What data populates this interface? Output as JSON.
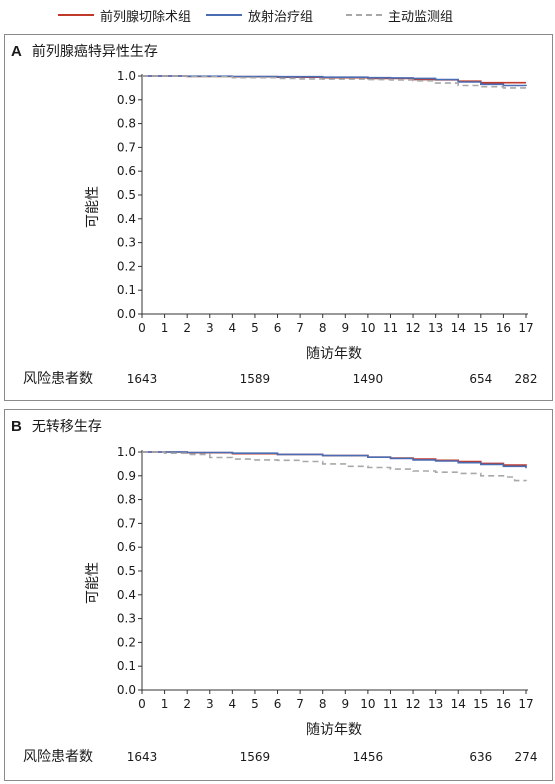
{
  "legend": [
    {
      "label": "前列腺切除术组",
      "color": "#c0392b",
      "dash": "none"
    },
    {
      "label": "放射治疗组",
      "color": "#4a6cb3",
      "dash": "none"
    },
    {
      "label": "主动监测组",
      "color": "#a8a8a8",
      "dash": "6,4"
    }
  ],
  "chart_data": [
    {
      "panel_letter": "A",
      "title": "前列腺癌特异性生存",
      "type": "line",
      "style": "step",
      "xlabel": "随访年数",
      "ylabel": "可能性",
      "xlim": [
        0,
        17
      ],
      "ylim": [
        0.0,
        1.0
      ],
      "x_ticks": [
        0,
        1,
        2,
        3,
        4,
        5,
        6,
        7,
        8,
        9,
        10,
        11,
        12,
        13,
        14,
        15,
        16,
        17
      ],
      "y_ticks": [
        "0.0",
        "0.1",
        "0.2",
        "0.3",
        "0.4",
        "0.5",
        "0.6",
        "0.7",
        "0.8",
        "0.9",
        "1.0"
      ],
      "series": [
        {
          "name": "前列腺切除术组",
          "color": "#c0392b",
          "dash": "none",
          "x": [
            0,
            2,
            4,
            6,
            8,
            10,
            11,
            12,
            13,
            14,
            15,
            17
          ],
          "y": [
            1.0,
            0.998,
            0.997,
            0.995,
            0.993,
            0.99,
            0.99,
            0.985,
            0.984,
            0.978,
            0.972,
            0.972
          ]
        },
        {
          "name": "放射治疗组",
          "color": "#4a6cb3",
          "dash": "none",
          "x": [
            0,
            2,
            4,
            6,
            8,
            10,
            11,
            12,
            13,
            14,
            15,
            16,
            17
          ],
          "y": [
            1.0,
            0.999,
            0.998,
            0.997,
            0.995,
            0.993,
            0.992,
            0.99,
            0.985,
            0.975,
            0.965,
            0.96,
            0.958
          ]
        },
        {
          "name": "主动监测组",
          "color": "#a8a8a8",
          "dash": "6,4",
          "x": [
            0,
            2,
            4,
            6,
            7,
            8,
            10,
            11,
            12,
            13,
            14,
            15,
            16,
            17
          ],
          "y": [
            1.0,
            0.997,
            0.993,
            0.99,
            0.988,
            0.987,
            0.985,
            0.983,
            0.98,
            0.97,
            0.96,
            0.955,
            0.95,
            0.95
          ]
        }
      ],
      "at_risk": {
        "label": "风险患者数",
        "x": [
          0,
          5,
          10,
          15,
          17
        ],
        "values": [
          "1643",
          "1589",
          "1490",
          "654",
          "282"
        ]
      }
    },
    {
      "panel_letter": "B",
      "title": "无转移生存",
      "type": "line",
      "style": "step",
      "xlabel": "随访年数",
      "ylabel": "可能性",
      "xlim": [
        0,
        17
      ],
      "ylim": [
        0.0,
        1.0
      ],
      "x_ticks": [
        0,
        1,
        2,
        3,
        4,
        5,
        6,
        7,
        8,
        9,
        10,
        11,
        12,
        13,
        14,
        15,
        16,
        17
      ],
      "y_ticks": [
        "0.0",
        "0.1",
        "0.2",
        "0.3",
        "0.4",
        "0.5",
        "0.6",
        "0.7",
        "0.8",
        "0.9",
        "1.0"
      ],
      "series": [
        {
          "name": "前列腺切除术组",
          "color": "#c0392b",
          "dash": "none",
          "x": [
            0,
            2,
            4,
            6,
            8,
            10,
            11,
            12,
            13,
            14,
            15,
            16,
            17
          ],
          "y": [
            1.0,
            0.997,
            0.993,
            0.99,
            0.985,
            0.978,
            0.975,
            0.97,
            0.965,
            0.96,
            0.952,
            0.945,
            0.94
          ]
        },
        {
          "name": "放射治疗组",
          "color": "#4a6cb3",
          "dash": "none",
          "x": [
            0,
            2,
            4,
            6,
            8,
            10,
            11,
            12,
            13,
            14,
            15,
            16,
            17
          ],
          "y": [
            1.0,
            0.998,
            0.995,
            0.99,
            0.985,
            0.978,
            0.973,
            0.967,
            0.962,
            0.955,
            0.948,
            0.94,
            0.932
          ]
        },
        {
          "name": "主动监测组",
          "color": "#a8a8a8",
          "dash": "6,4",
          "x": [
            0,
            1,
            2,
            3,
            4,
            5,
            6,
            7,
            8,
            9,
            10,
            11,
            12,
            13,
            14,
            15,
            16,
            16.5,
            17
          ],
          "y": [
            1.0,
            0.995,
            0.99,
            0.977,
            0.97,
            0.967,
            0.965,
            0.96,
            0.95,
            0.94,
            0.935,
            0.928,
            0.92,
            0.915,
            0.91,
            0.9,
            0.895,
            0.88,
            0.878
          ]
        }
      ],
      "at_risk": {
        "label": "风险患者数",
        "x": [
          0,
          5,
          10,
          15,
          17
        ],
        "values": [
          "1643",
          "1569",
          "1456",
          "636",
          "274"
        ]
      }
    }
  ]
}
